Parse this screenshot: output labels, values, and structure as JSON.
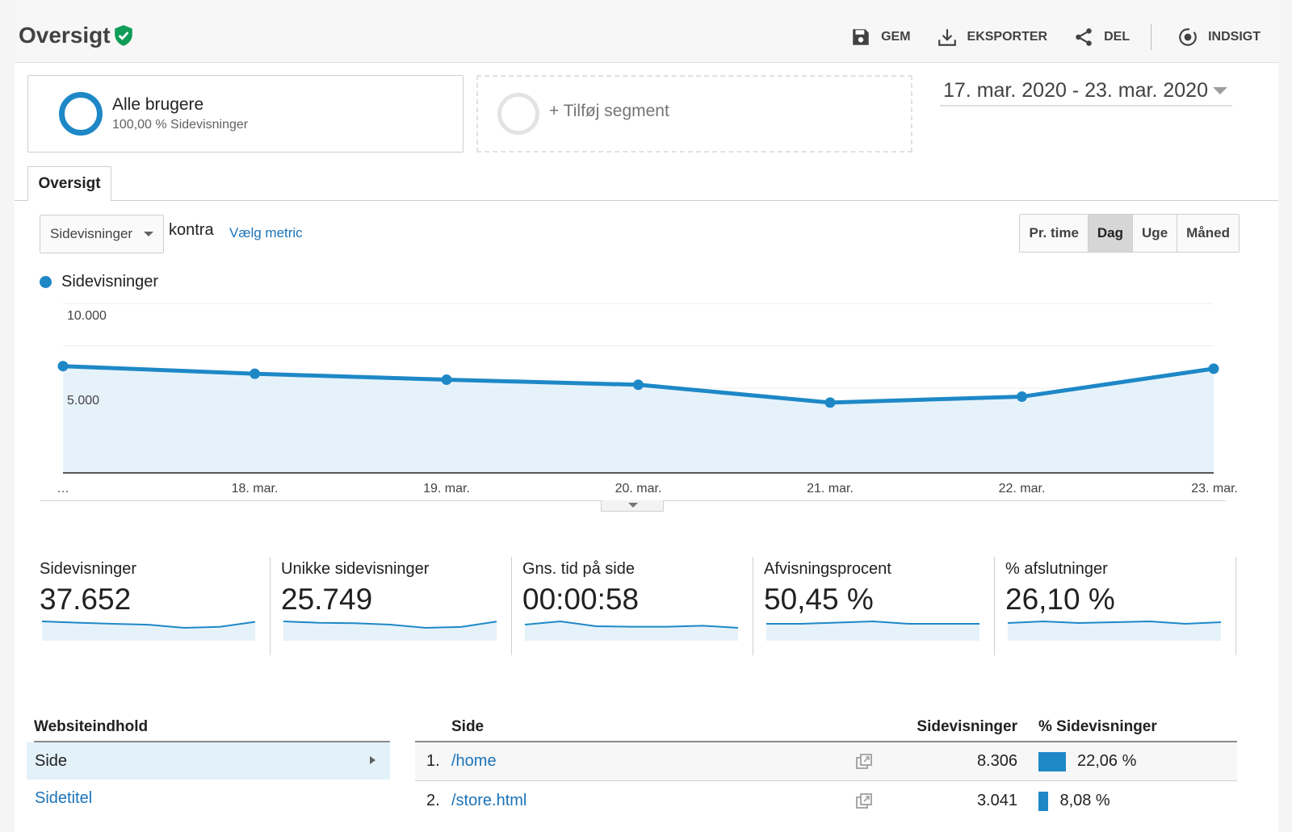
{
  "header": {
    "title": "Oversigt",
    "toolbar": {
      "save": "GEM",
      "export": "EKSPORTER",
      "share": "DEL",
      "insight": "INDSIGT"
    }
  },
  "segments": {
    "active": {
      "name": "Alle brugere",
      "sub": "100,00 % Sidevisninger"
    },
    "add_label": "+ Tilføj segment"
  },
  "date_range": "17. mar. 2020 - 23. mar. 2020",
  "tab": "Oversigt",
  "metric_row": {
    "selected_metric": "Sidevisninger",
    "versus": "kontra",
    "choose_metric": "Vælg metric",
    "periods": [
      "Pr. time",
      "Dag",
      "Uge",
      "Måned"
    ],
    "active_period": "Dag"
  },
  "chart_data": {
    "type": "area",
    "series": [
      {
        "name": "Sidevisninger",
        "values": [
          6300,
          5850,
          5500,
          5200,
          4150,
          4500,
          6150
        ]
      }
    ],
    "categories": [
      "…",
      "18. mar.",
      "19. mar.",
      "20. mar.",
      "21. mar.",
      "22. mar.",
      "23. mar."
    ],
    "ylim": [
      0,
      10000
    ],
    "yticks": [
      "10.000",
      "5.000"
    ],
    "ytick_values": [
      10000,
      5000
    ],
    "color": "#1e88c7"
  },
  "scorecards": [
    {
      "label": "Sidevisninger",
      "value": "37.652",
      "spark": [
        6300,
        5850,
        5500,
        5200,
        4150,
        4500,
        6150
      ]
    },
    {
      "label": "Unikke sidevisninger",
      "value": "25.749",
      "spark": [
        4300,
        4000,
        3900,
        3600,
        2900,
        3100,
        4250
      ]
    },
    {
      "label": "Gns. tid på side",
      "value": "00:00:58",
      "spark": [
        60,
        66,
        57,
        56,
        56,
        58,
        54
      ]
    },
    {
      "label": "Afvisningsprocent",
      "value": "50,45 %",
      "spark": [
        50,
        50,
        50.5,
        51,
        50,
        50,
        50
      ]
    },
    {
      "label": "% afslutninger",
      "value": "26,10 %",
      "spark": [
        25,
        27,
        25,
        26,
        27,
        24,
        26
      ]
    }
  ],
  "website_content": {
    "header": "Websiteindhold",
    "items": [
      "Side",
      "Sidetitel"
    ]
  },
  "pages_table": {
    "headers": {
      "page": "Side",
      "pageviews": "Sidevisninger",
      "pct": "% Sidevisninger"
    },
    "rows": [
      {
        "num": "1.",
        "page": "/home",
        "pageviews": "8.306",
        "pct": "22,06 %",
        "share": 22.06
      },
      {
        "num": "2.",
        "page": "/store.html",
        "pageviews": "3.041",
        "pct": "8,08 %",
        "share": 8.08
      }
    ]
  }
}
